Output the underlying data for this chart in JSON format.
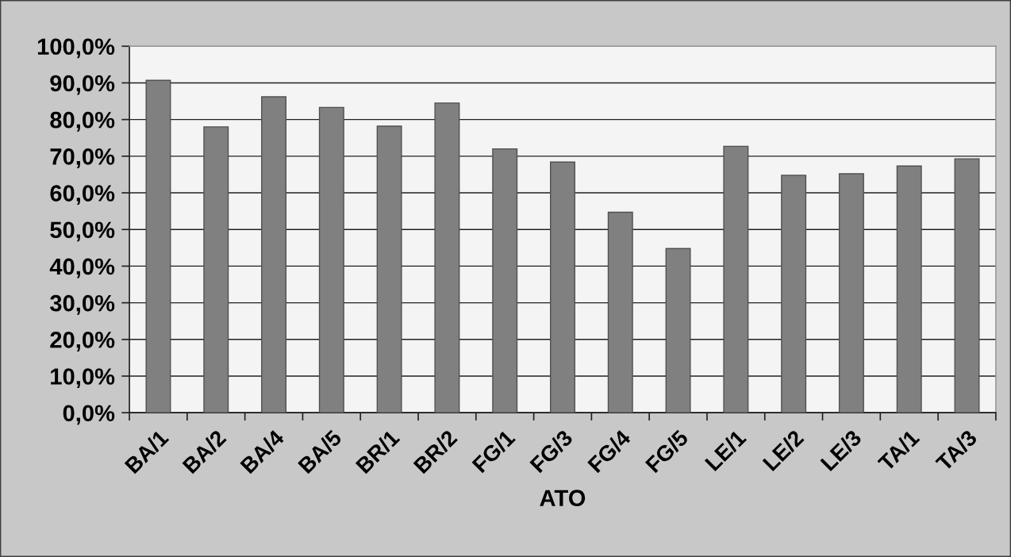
{
  "chart_data": {
    "type": "bar",
    "xlabel": "ATO",
    "categories": [
      "BA/1",
      "BA/2",
      "BA/4",
      "BA/5",
      "BR/1",
      "BR/2",
      "FG/1",
      "FG/3",
      "FG/4",
      "FG/5",
      "LE/1",
      "LE/2",
      "LE/3",
      "TA/1",
      "TA/3"
    ],
    "values": [
      90.7,
      78.0,
      86.2,
      83.3,
      78.2,
      84.5,
      72.0,
      68.4,
      54.7,
      44.8,
      72.7,
      64.8,
      65.2,
      67.3,
      69.3
    ],
    "color": "#808080",
    "ylim": [
      0,
      100
    ],
    "yticks": [
      {
        "value": 0,
        "label": "0,0%"
      },
      {
        "value": 10,
        "label": "10,0%"
      },
      {
        "value": 20,
        "label": "20,0%"
      },
      {
        "value": 30,
        "label": "30,0%"
      },
      {
        "value": 40,
        "label": "40,0%"
      },
      {
        "value": 50,
        "label": "50,0%"
      },
      {
        "value": 60,
        "label": "60,0%"
      },
      {
        "value": 70,
        "label": "70,0%"
      },
      {
        "value": 80,
        "label": "80,0%"
      },
      {
        "value": 90,
        "label": "90,0%"
      },
      {
        "value": 100,
        "label": "100,0%"
      }
    ],
    "grid": "y"
  }
}
